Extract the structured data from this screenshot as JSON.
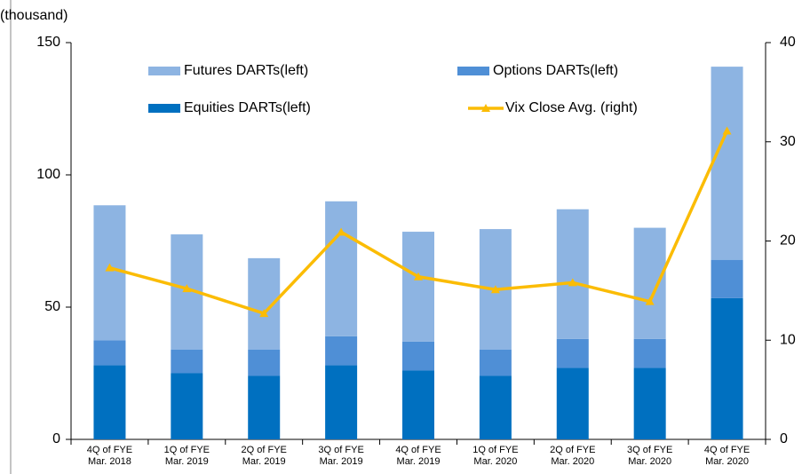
{
  "chart_data": {
    "type": "bar",
    "stacked": true,
    "unit_label": "(thousand)",
    "categories": [
      [
        "4Q of FYE",
        "Mar. 2018"
      ],
      [
        "1Q of FYE",
        "Mar. 2019"
      ],
      [
        "2Q of FYE",
        "Mar. 2019"
      ],
      [
        "3Q of FYE",
        "Mar. 2019"
      ],
      [
        "4Q of FYE",
        "Mar. 2019"
      ],
      [
        "1Q of FYE",
        "Mar. 2020"
      ],
      [
        "2Q of FYE",
        "Mar. 2020"
      ],
      [
        "3Q of FYE",
        "Mar. 2020"
      ],
      [
        "4Q of FYE",
        "Mar. 2020"
      ]
    ],
    "series": [
      {
        "name": "Futures DARTs(left)",
        "color": "#8db4e2",
        "stack_order": 2,
        "values": [
          51,
          43.5,
          34.5,
          51,
          41.5,
          45.5,
          49,
          42,
          73
        ]
      },
      {
        "name": "Options DARTs(left)",
        "color": "#4f8fd6",
        "stack_order": 1,
        "values": [
          9.5,
          9,
          10,
          11,
          11,
          10,
          11,
          11,
          14.5
        ]
      },
      {
        "name": "Equities DARTs(left)",
        "color": "#0070c0",
        "stack_order": 0,
        "values": [
          28,
          25,
          24,
          28,
          26,
          24,
          27,
          27,
          53.4
        ]
      },
      {
        "name": "Vix Close Avg. (right)",
        "color": "#fbbc05",
        "type": "line",
        "axis": "y2",
        "values": [
          17.3,
          15.2,
          12.7,
          20.9,
          16.4,
          15.1,
          15.8,
          13.9,
          31.1
        ]
      }
    ],
    "ylim": [
      0,
      150
    ],
    "yticks": [
      0,
      50,
      100,
      150
    ],
    "y2lim": [
      0,
      40
    ],
    "y2ticks": [
      0,
      10,
      20,
      30,
      40
    ]
  }
}
